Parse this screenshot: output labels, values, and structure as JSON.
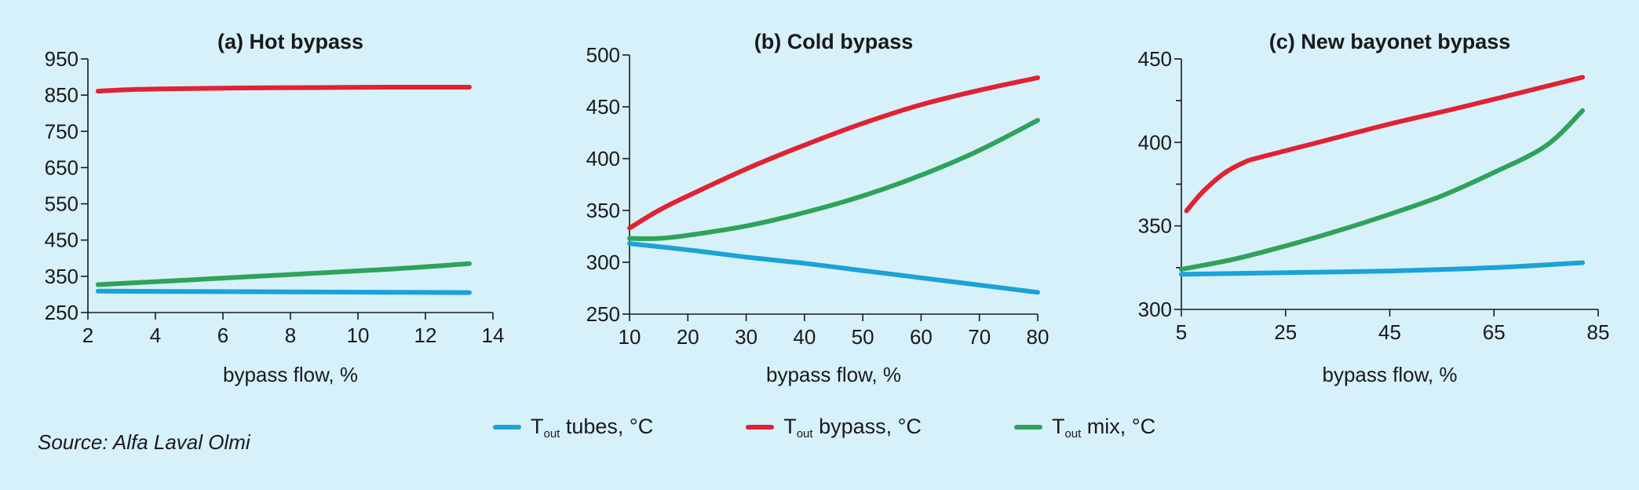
{
  "colors": {
    "background": "#d7f1fa",
    "tubes": "#1ba3d8",
    "bypass": "#e02232",
    "mix": "#2ea35a"
  },
  "legend": [
    {
      "symbol": "T",
      "subscript": "out",
      "text": " tubes, °C",
      "color": "#1ba3d8"
    },
    {
      "symbol": "T",
      "subscript": "out",
      "text": " bypass, °C",
      "color": "#e02232"
    },
    {
      "symbol": "T",
      "subscript": "out",
      "text": " mix, °C",
      "color": "#2ea35a"
    }
  ],
  "source": "Source: Alfa Laval Olmi",
  "chart_data": [
    {
      "type": "line",
      "title": "(a) Hot bypass",
      "xlabel": "bypass flow, %",
      "ylabel": "",
      "xlim": [
        2,
        14
      ],
      "ylim": [
        250,
        950
      ],
      "xticks": [
        2,
        4,
        6,
        8,
        10,
        12,
        14
      ],
      "yticks": [
        250,
        350,
        450,
        550,
        650,
        750,
        850,
        950
      ],
      "ytick_labels": [
        "250",
        "350",
        "450",
        "550",
        "650",
        "750",
        "850",
        "950"
      ],
      "series": [
        {
          "key": "tubes",
          "x": [
            2.3,
            5,
            8,
            11,
            13.3
          ],
          "y": [
            309,
            308,
            307,
            306,
            305
          ]
        },
        {
          "key": "bypass",
          "x": [
            2.3,
            3.5,
            5,
            7,
            9,
            11,
            13.3
          ],
          "y": [
            861,
            866,
            868,
            870,
            871,
            872,
            872
          ]
        },
        {
          "key": "mix",
          "x": [
            2.3,
            5,
            8,
            11,
            13.3
          ],
          "y": [
            327,
            340,
            355,
            370,
            385
          ]
        }
      ]
    },
    {
      "type": "line",
      "title": "(b) Cold bypass",
      "xlabel": "bypass flow, %",
      "ylabel": "",
      "xlim": [
        10,
        80
      ],
      "ylim": [
        250,
        500
      ],
      "xticks": [
        10,
        20,
        30,
        40,
        50,
        60,
        70,
        80
      ],
      "yticks": [
        250,
        300,
        350,
        400,
        450,
        500
      ],
      "ytick_labels": [
        "250",
        "300",
        "350",
        "400",
        "450",
        "500"
      ],
      "series": [
        {
          "key": "tubes",
          "x": [
            10,
            20,
            30,
            40,
            50,
            60,
            70,
            80
          ],
          "y": [
            318,
            312,
            305,
            299,
            292,
            285,
            278,
            271
          ]
        },
        {
          "key": "bypass",
          "x": [
            10,
            15,
            20,
            30,
            40,
            50,
            60,
            70,
            80
          ],
          "y": [
            333,
            350,
            364,
            390,
            413,
            434,
            452,
            466,
            478
          ]
        },
        {
          "key": "mix",
          "x": [
            10,
            15,
            20,
            30,
            40,
            50,
            60,
            70,
            80
          ],
          "y": [
            323,
            323,
            326,
            335,
            348,
            364,
            384,
            408,
            437
          ]
        }
      ]
    },
    {
      "type": "line",
      "title": "(c)  New bayonet bypass",
      "xlabel": "bypass flow, %",
      "ylabel": "",
      "xlim": [
        5,
        85
      ],
      "ylim": [
        300,
        450
      ],
      "xticks": [
        5,
        25,
        45,
        65,
        85
      ],
      "yticks": [
        300,
        350,
        400,
        450
      ],
      "ytick_labels": [
        "300",
        "350",
        "400",
        "450"
      ],
      "minor_yticks": [
        325,
        375,
        425
      ],
      "series": [
        {
          "key": "tubes",
          "x": [
            5,
            25,
            45,
            65,
            82
          ],
          "y": [
            321,
            322,
            323,
            325,
            328
          ]
        },
        {
          "key": "bypass",
          "x": [
            6,
            9,
            13,
            17,
            20,
            30,
            45,
            60,
            82
          ],
          "y": [
            359,
            370,
            381,
            388,
            391,
            399,
            411,
            422,
            439
          ]
        },
        {
          "key": "mix",
          "x": [
            5,
            15,
            25,
            35,
            45,
            55,
            65,
            75,
            82
          ],
          "y": [
            324,
            330,
            338,
            347,
            357,
            368,
            382,
            398,
            419
          ]
        }
      ]
    }
  ]
}
